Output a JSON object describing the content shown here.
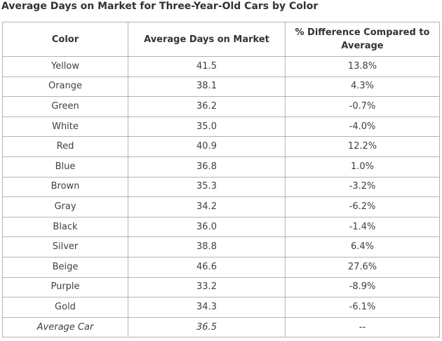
{
  "title": "Average Days on Market for Three-Year-Old Cars by Color",
  "table": {
    "headers": [
      "Color",
      "Average Days on Market",
      "% Difference Compared to Average"
    ],
    "rows": [
      [
        "Yellow",
        "41.5",
        "13.8%"
      ],
      [
        "Orange",
        "38.1",
        "4.3%"
      ],
      [
        "Green",
        "36.2",
        "-0.7%"
      ],
      [
        "White",
        "35.0",
        "-4.0%"
      ],
      [
        "Red",
        "40.9",
        "12.2%"
      ],
      [
        "Blue",
        "36.8",
        "1.0%"
      ],
      [
        "Brown",
        "35.3",
        "-3.2%"
      ],
      [
        "Gray",
        "34.2",
        "-6.2%"
      ],
      [
        "Black",
        "36.0",
        "-1.4%"
      ],
      [
        "Silver",
        "38.8",
        "6.4%"
      ],
      [
        "Beige",
        "46.6",
        "27.6%"
      ],
      [
        "Purple",
        "33.2",
        "-8.9%"
      ],
      [
        "Gold",
        "34.3",
        "-6.1%"
      ]
    ],
    "average_row": [
      "Average Car",
      "36.5",
      "--"
    ]
  }
}
